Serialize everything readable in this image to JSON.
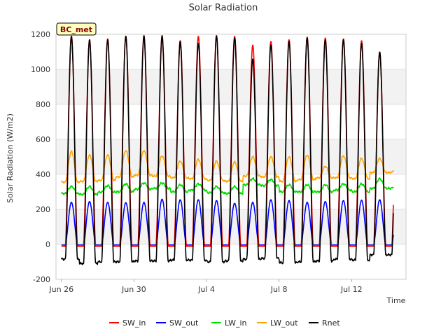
{
  "chart_data": {
    "type": "line",
    "title": "Solar Radiation",
    "xlabel": "Time",
    "ylabel": "Solar Radiation (W/m2)",
    "badge": "BC_met",
    "ylim": [
      -200,
      1200
    ],
    "yticks": [
      -200,
      0,
      200,
      400,
      600,
      800,
      1000,
      1200
    ],
    "xlim_days": [
      -0.3,
      19.0
    ],
    "xticks": [
      {
        "day": 0,
        "label": "Jun 26"
      },
      {
        "day": 4,
        "label": "Jun 30"
      },
      {
        "day": 8,
        "label": "Jul 4"
      },
      {
        "day": 12,
        "label": "Jul 8"
      },
      {
        "day": 16,
        "label": "Jul 12"
      }
    ],
    "grid_bands": true,
    "legend_position": "bottom",
    "day_window": [
      0,
      18.3
    ],
    "daily": {
      "sw_in_peak": [
        1190,
        1170,
        1175,
        1190,
        1195,
        1195,
        1165,
        1190,
        1195,
        1190,
        1140,
        1160,
        1170,
        1185,
        1180,
        1175,
        1165,
        1100
      ],
      "sw_out_peak": [
        240,
        245,
        240,
        238,
        240,
        258,
        255,
        255,
        250,
        235,
        240,
        255,
        250,
        240,
        245,
        250,
        252,
        255
      ],
      "lw_in_night": [
        290,
        285,
        298,
        300,
        315,
        320,
        300,
        310,
        295,
        290,
        340,
        335,
        300,
        300,
        300,
        310,
        300,
        320
      ],
      "lw_in_day": [
        330,
        330,
        335,
        345,
        350,
        350,
        340,
        345,
        330,
        330,
        375,
        370,
        340,
        340,
        340,
        345,
        345,
        375
      ],
      "lw_out_night": [
        355,
        360,
        365,
        385,
        395,
        390,
        380,
        375,
        365,
        360,
        390,
        385,
        360,
        370,
        380,
        380,
        375,
        410
      ],
      "lw_out_peak": [
        530,
        510,
        510,
        535,
        535,
        505,
        475,
        485,
        475,
        470,
        500,
        500,
        500,
        510,
        445,
        505,
        490,
        490
      ],
      "rnet_night": [
        -85,
        -110,
        -100,
        -100,
        -95,
        -95,
        -90,
        -90,
        -100,
        -95,
        -85,
        -80,
        -105,
        -100,
        -95,
        -85,
        -90,
        -60
      ],
      "rnet_peak": [
        1190,
        1170,
        1170,
        1190,
        1190,
        1190,
        1160,
        1150,
        1190,
        1180,
        1060,
        1140,
        1160,
        1180,
        1170,
        1170,
        1150,
        1100
      ]
    },
    "series": [
      {
        "name": "SW_in",
        "key": "sw_in",
        "color": "#ff0000"
      },
      {
        "name": "SW_out",
        "key": "sw_out",
        "color": "#0000ff"
      },
      {
        "name": "LW_in",
        "key": "lw_in",
        "color": "#00dd00"
      },
      {
        "name": "LW_out",
        "key": "lw_out",
        "color": "#ffa500"
      },
      {
        "name": "Rnet",
        "key": "rnet",
        "color": "#000000"
      }
    ]
  }
}
